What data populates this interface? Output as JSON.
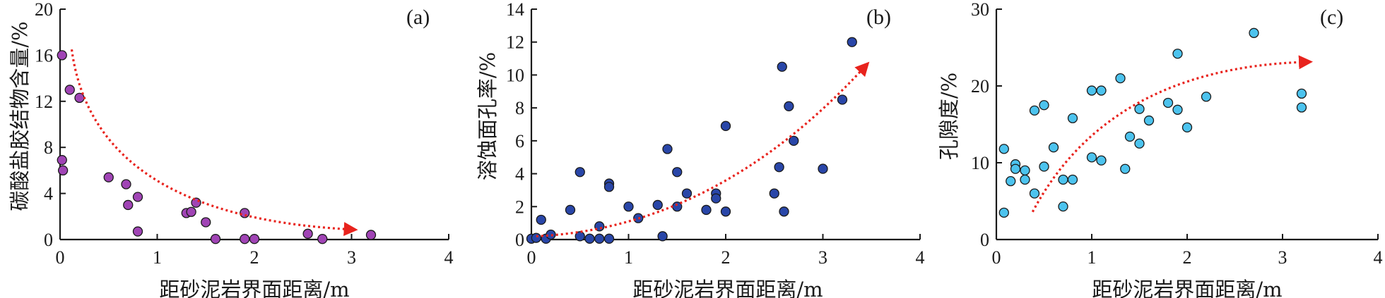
{
  "colors": {
    "axis": "#1a1a1a",
    "trend_arrow": "#e8231d",
    "panel_a_points": "#a044b5",
    "panel_b_points": "#2946a8",
    "panel_c_points": "#4cc3ee",
    "point_outline": "#1a1a1a"
  },
  "chart_data": [
    {
      "type": "scatter",
      "panel_label": "(a)",
      "xlabel": "距砂泥岩界面距离/m",
      "ylabel": "碳酸盐胶结物含量/%",
      "xlim": [
        0,
        4
      ],
      "ylim": [
        0,
        20
      ],
      "xticks": [
        0,
        1,
        2,
        3,
        4
      ],
      "yticks": [
        0,
        4,
        8,
        12,
        16,
        20
      ],
      "points": [
        {
          "x": 0.02,
          "y": 16.0
        },
        {
          "x": 0.02,
          "y": 6.9
        },
        {
          "x": 0.03,
          "y": 6.0
        },
        {
          "x": 0.1,
          "y": 13.0
        },
        {
          "x": 0.2,
          "y": 12.3
        },
        {
          "x": 0.5,
          "y": 5.4
        },
        {
          "x": 0.68,
          "y": 4.8
        },
        {
          "x": 0.7,
          "y": 3.0
        },
        {
          "x": 0.8,
          "y": 3.7
        },
        {
          "x": 0.8,
          "y": 0.7
        },
        {
          "x": 1.3,
          "y": 2.3
        },
        {
          "x": 1.35,
          "y": 2.4
        },
        {
          "x": 1.4,
          "y": 3.2
        },
        {
          "x": 1.5,
          "y": 1.5
        },
        {
          "x": 1.6,
          "y": 0.05
        },
        {
          "x": 1.9,
          "y": 2.3
        },
        {
          "x": 1.9,
          "y": 0.05
        },
        {
          "x": 2.0,
          "y": 0.05
        },
        {
          "x": 2.55,
          "y": 0.5
        },
        {
          "x": 2.7,
          "y": 0.05
        },
        {
          "x": 3.2,
          "y": 0.4
        }
      ],
      "trend": {
        "direction": "decreasing",
        "from": [
          0.12,
          16.5
        ],
        "to": [
          2.95,
          0.9
        ]
      }
    },
    {
      "type": "scatter",
      "panel_label": "(b)",
      "xlabel": "距砂泥岩界面距离/m",
      "ylabel": "溶蚀面孔率/%",
      "xlim": [
        0,
        4
      ],
      "ylim": [
        0,
        14
      ],
      "xticks": [
        0,
        1,
        2,
        3,
        4
      ],
      "yticks": [
        0,
        2,
        4,
        6,
        8,
        10,
        12,
        14
      ],
      "points": [
        {
          "x": 0.0,
          "y": 0.05
        },
        {
          "x": 0.05,
          "y": 0.1
        },
        {
          "x": 0.1,
          "y": 1.2
        },
        {
          "x": 0.15,
          "y": 0.05
        },
        {
          "x": 0.2,
          "y": 0.3
        },
        {
          "x": 0.4,
          "y": 1.8
        },
        {
          "x": 0.5,
          "y": 4.1
        },
        {
          "x": 0.5,
          "y": 0.2
        },
        {
          "x": 0.6,
          "y": 0.05
        },
        {
          "x": 0.7,
          "y": 0.8
        },
        {
          "x": 0.7,
          "y": 0.05
        },
        {
          "x": 0.8,
          "y": 3.4
        },
        {
          "x": 0.8,
          "y": 3.2
        },
        {
          "x": 0.8,
          "y": 0.05
        },
        {
          "x": 1.0,
          "y": 2.0
        },
        {
          "x": 1.1,
          "y": 1.3
        },
        {
          "x": 1.3,
          "y": 2.1
        },
        {
          "x": 1.35,
          "y": 0.2
        },
        {
          "x": 1.4,
          "y": 5.5
        },
        {
          "x": 1.5,
          "y": 4.1
        },
        {
          "x": 1.5,
          "y": 2.0
        },
        {
          "x": 1.6,
          "y": 2.8
        },
        {
          "x": 1.8,
          "y": 1.8
        },
        {
          "x": 1.9,
          "y": 2.8
        },
        {
          "x": 1.9,
          "y": 2.5
        },
        {
          "x": 2.0,
          "y": 6.9
        },
        {
          "x": 2.0,
          "y": 1.7
        },
        {
          "x": 2.5,
          "y": 2.8
        },
        {
          "x": 2.55,
          "y": 4.4
        },
        {
          "x": 2.58,
          "y": 10.5
        },
        {
          "x": 2.6,
          "y": 1.7
        },
        {
          "x": 2.65,
          "y": 8.1
        },
        {
          "x": 2.7,
          "y": 6.0
        },
        {
          "x": 3.0,
          "y": 4.3
        },
        {
          "x": 3.2,
          "y": 8.5
        },
        {
          "x": 3.3,
          "y": 12.0
        }
      ],
      "trend": {
        "direction": "increasing",
        "from": [
          0.05,
          0.2
        ],
        "to": [
          3.4,
          10.3
        ]
      }
    },
    {
      "type": "scatter",
      "panel_label": "(c)",
      "xlabel": "距砂泥岩界面距离/m",
      "ylabel": "孔隙度/%",
      "xlim": [
        0,
        4
      ],
      "ylim": [
        0,
        30
      ],
      "xticks": [
        0,
        1,
        2,
        3,
        4
      ],
      "yticks": [
        0,
        10,
        20,
        30
      ],
      "points": [
        {
          "x": 0.08,
          "y": 3.5
        },
        {
          "x": 0.08,
          "y": 11.8
        },
        {
          "x": 0.15,
          "y": 7.6
        },
        {
          "x": 0.2,
          "y": 9.8
        },
        {
          "x": 0.2,
          "y": 9.2
        },
        {
          "x": 0.3,
          "y": 7.8
        },
        {
          "x": 0.3,
          "y": 9.0
        },
        {
          "x": 0.4,
          "y": 16.8
        },
        {
          "x": 0.4,
          "y": 6.0
        },
        {
          "x": 0.5,
          "y": 17.5
        },
        {
          "x": 0.5,
          "y": 9.5
        },
        {
          "x": 0.6,
          "y": 12.0
        },
        {
          "x": 0.7,
          "y": 7.8
        },
        {
          "x": 0.7,
          "y": 4.3
        },
        {
          "x": 0.8,
          "y": 15.8
        },
        {
          "x": 0.8,
          "y": 7.8
        },
        {
          "x": 1.0,
          "y": 19.4
        },
        {
          "x": 1.0,
          "y": 10.7
        },
        {
          "x": 1.1,
          "y": 19.4
        },
        {
          "x": 1.1,
          "y": 10.3
        },
        {
          "x": 1.3,
          "y": 21.0
        },
        {
          "x": 1.35,
          "y": 9.2
        },
        {
          "x": 1.4,
          "y": 13.4
        },
        {
          "x": 1.5,
          "y": 17.0
        },
        {
          "x": 1.5,
          "y": 12.5
        },
        {
          "x": 1.6,
          "y": 15.5
        },
        {
          "x": 1.8,
          "y": 17.8
        },
        {
          "x": 1.9,
          "y": 24.2
        },
        {
          "x": 1.9,
          "y": 16.9
        },
        {
          "x": 2.0,
          "y": 14.6
        },
        {
          "x": 2.2,
          "y": 18.6
        },
        {
          "x": 2.7,
          "y": 26.9
        },
        {
          "x": 3.2,
          "y": 19.0
        },
        {
          "x": 3.2,
          "y": 17.2
        }
      ],
      "trend": {
        "direction": "increasing",
        "from": [
          0.38,
          3.6
        ],
        "to": [
          3.2,
          23.1
        ]
      }
    }
  ]
}
